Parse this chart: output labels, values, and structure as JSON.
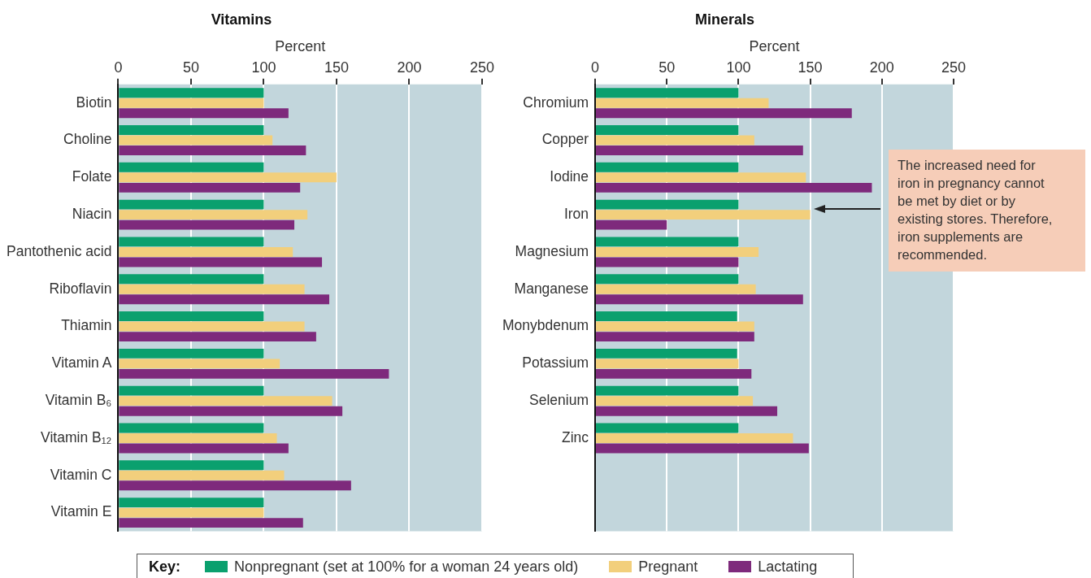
{
  "chart_data": [
    {
      "type": "bar",
      "orientation": "horizontal",
      "title": "Vitamins",
      "xlabel": "Percent",
      "categories": [
        "Biotin",
        "Choline",
        "Folate",
        "Niacin",
        "Pantothenic acid",
        "Riboflavin",
        "Thiamin",
        "Vitamin A",
        "Vitamin B₆",
        "Vitamin B₁₂",
        "Vitamin C",
        "Vitamin E"
      ],
      "series": [
        {
          "name": "Nonpregnant (set at 100% for a woman 24 years old)",
          "color": "#0aa06e",
          "values": [
            100,
            100,
            100,
            100,
            100,
            100,
            100,
            100,
            100,
            100,
            100,
            100
          ]
        },
        {
          "name": "Pregnant",
          "color": "#f2cf7c",
          "values": [
            100,
            106,
            150,
            130,
            120,
            128,
            128,
            111,
            147,
            109,
            114,
            100
          ]
        },
        {
          "name": "Lactating",
          "color": "#7e2a7c",
          "values": [
            117,
            129,
            125,
            121,
            140,
            145,
            136,
            186,
            154,
            117,
            160,
            127
          ]
        }
      ],
      "xlim": [
        0,
        250
      ],
      "xticks": [
        0,
        50,
        100,
        150,
        200,
        250
      ],
      "grid": "x",
      "legend": "bottom",
      "legend_title": "Key:"
    },
    {
      "type": "bar",
      "orientation": "horizontal",
      "title": "Minerals",
      "xlabel": "Percent",
      "categories": [
        "Chromium",
        "Copper",
        "Iodine",
        "Iron",
        "Magnesium",
        "Manganese",
        "Monybdenum",
        "Potassium",
        "Selenium",
        "Zinc"
      ],
      "series": [
        {
          "name": "Nonpregnant (set at 100% for a woman 24 years old)",
          "color": "#0aa06e",
          "values": [
            100,
            100,
            100,
            100,
            100,
            100,
            99,
            99,
            100,
            100
          ]
        },
        {
          "name": "Pregnant",
          "color": "#f2cf7c",
          "values": [
            121,
            111,
            147,
            150,
            114,
            112,
            111,
            100,
            110,
            138
          ]
        },
        {
          "name": "Lactating",
          "color": "#7e2a7c",
          "values": [
            179,
            145,
            193,
            50,
            100,
            145,
            111,
            109,
            127,
            149
          ]
        }
      ],
      "xlim": [
        0,
        250
      ],
      "xticks": [
        0,
        50,
        100,
        150,
        200,
        250
      ],
      "grid": "x",
      "legend": "bottom",
      "annotations": [
        "The increased need for iron in pregnancy cannot be met by diet or by existing stores. Therefore, iron supplements are recommended."
      ]
    }
  ]
}
